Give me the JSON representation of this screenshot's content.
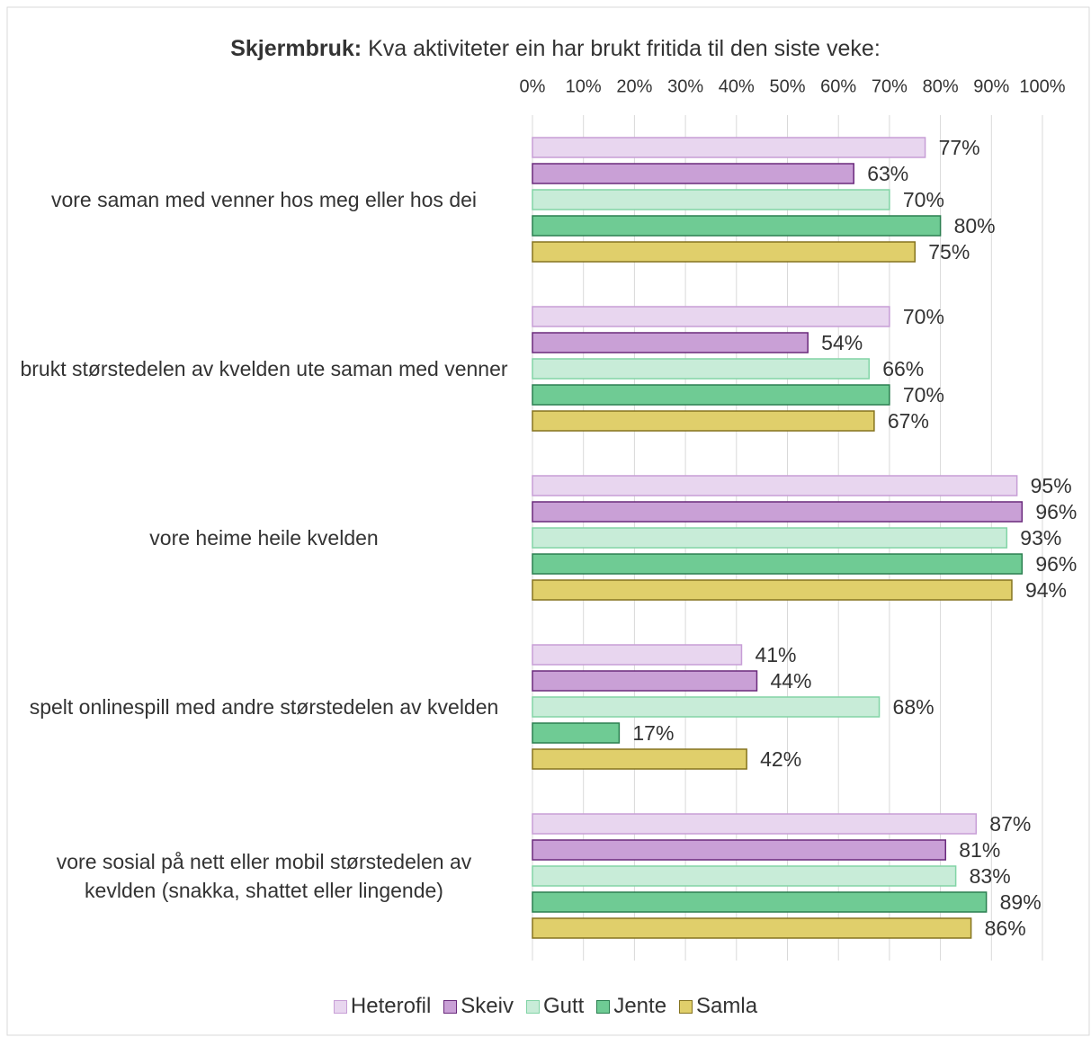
{
  "chart_data": {
    "type": "hbar",
    "title_lead": "Skjermbruk:",
    "title": "Kva aktiviteter ein har brukt fritida til den siste veke:",
    "categories": [
      "vore saman med venner hos meg eller hos dei",
      "brukt størstedelen av kvelden ute saman med venner",
      "vore heime heile kvelden",
      "spelt onlinespill med andre størstedelen av kvelden",
      "vore sosial på nett eller mobil størstedelen av kevlden (snakka, shattet eller lingende)"
    ],
    "series": [
      {
        "name": "Heterofil",
        "color": "#e8d6ef",
        "border": "#c79ed6",
        "values": [
          77,
          70,
          95,
          41,
          87
        ],
        "value_labels": [
          "77%",
          "70%",
          "95%",
          "41%",
          "87%"
        ]
      },
      {
        "name": "Skeiv",
        "color": "#c9a0d6",
        "border": "#6a2a7c",
        "values": [
          63,
          54,
          96,
          44,
          81
        ],
        "value_labels": [
          "63%",
          "54%",
          "96%",
          "44%",
          "81%"
        ]
      },
      {
        "name": "Gutt",
        "color": "#c8ecd8",
        "border": "#82d4a6",
        "values": [
          70,
          66,
          93,
          68,
          83
        ],
        "value_labels": [
          "70%",
          "66%",
          "93%",
          "68%",
          "83%"
        ]
      },
      {
        "name": "Jente",
        "color": "#6fcb94",
        "border": "#2b7f50",
        "values": [
          80,
          70,
          96,
          17,
          89
        ],
        "value_labels": [
          "80%",
          "70%",
          "96%",
          "17%",
          "89%"
        ]
      },
      {
        "name": "Samla",
        "color": "#e0cf6b",
        "border": "#857420",
        "values": [
          75,
          67,
          94,
          42,
          86
        ],
        "value_labels": [
          "75%",
          "67%",
          "94%",
          "42%",
          "86%"
        ]
      }
    ],
    "xlim": [
      0,
      100
    ],
    "xticks": [
      {
        "value": 0,
        "label": "0%"
      },
      {
        "value": 10,
        "label": "10%"
      },
      {
        "value": 20,
        "label": "20%"
      },
      {
        "value": 30,
        "label": "30%"
      },
      {
        "value": 40,
        "label": "40%"
      },
      {
        "value": 50,
        "label": "50%"
      },
      {
        "value": 60,
        "label": "60%"
      },
      {
        "value": 70,
        "label": "70%"
      },
      {
        "value": 80,
        "label": "80%"
      },
      {
        "value": 90,
        "label": "90%"
      },
      {
        "value": 100,
        "label": "100%"
      }
    ],
    "grid": true,
    "legend": "bottom"
  }
}
